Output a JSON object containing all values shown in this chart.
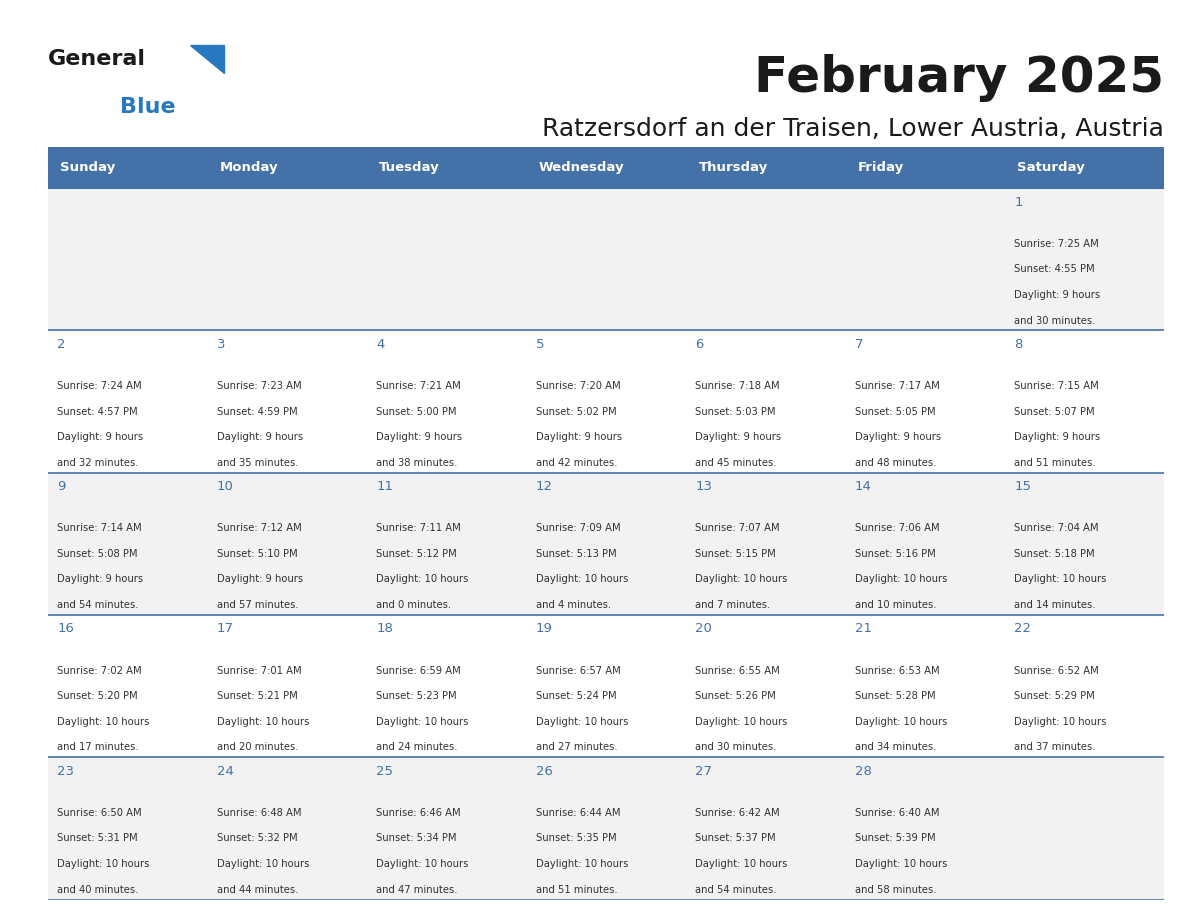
{
  "title": "February 2025",
  "subtitle": "Ratzersdorf an der Traisen, Lower Austria, Austria",
  "title_fontsize": 36,
  "subtitle_fontsize": 18,
  "header_bg": "#4472a8",
  "header_text_color": "#ffffff",
  "cell_bg_odd": "#f2f2f2",
  "cell_bg_even": "#ffffff",
  "border_color": "#4472a8",
  "day_number_color": "#4472a8",
  "text_color": "#333333",
  "days_of_week": [
    "Sunday",
    "Monday",
    "Tuesday",
    "Wednesday",
    "Thursday",
    "Friday",
    "Saturday"
  ],
  "weeks": [
    [
      null,
      null,
      null,
      null,
      null,
      null,
      1
    ],
    [
      2,
      3,
      4,
      5,
      6,
      7,
      8
    ],
    [
      9,
      10,
      11,
      12,
      13,
      14,
      15
    ],
    [
      16,
      17,
      18,
      19,
      20,
      21,
      22
    ],
    [
      23,
      24,
      25,
      26,
      27,
      28,
      null
    ]
  ],
  "cell_data": {
    "1": {
      "sunrise": "7:25 AM",
      "sunset": "4:55 PM",
      "daylight": "9 hours and 30 minutes."
    },
    "2": {
      "sunrise": "7:24 AM",
      "sunset": "4:57 PM",
      "daylight": "9 hours and 32 minutes."
    },
    "3": {
      "sunrise": "7:23 AM",
      "sunset": "4:59 PM",
      "daylight": "9 hours and 35 minutes."
    },
    "4": {
      "sunrise": "7:21 AM",
      "sunset": "5:00 PM",
      "daylight": "9 hours and 38 minutes."
    },
    "5": {
      "sunrise": "7:20 AM",
      "sunset": "5:02 PM",
      "daylight": "9 hours and 42 minutes."
    },
    "6": {
      "sunrise": "7:18 AM",
      "sunset": "5:03 PM",
      "daylight": "9 hours and 45 minutes."
    },
    "7": {
      "sunrise": "7:17 AM",
      "sunset": "5:05 PM",
      "daylight": "9 hours and 48 minutes."
    },
    "8": {
      "sunrise": "7:15 AM",
      "sunset": "5:07 PM",
      "daylight": "9 hours and 51 minutes."
    },
    "9": {
      "sunrise": "7:14 AM",
      "sunset": "5:08 PM",
      "daylight": "9 hours and 54 minutes."
    },
    "10": {
      "sunrise": "7:12 AM",
      "sunset": "5:10 PM",
      "daylight": "9 hours and 57 minutes."
    },
    "11": {
      "sunrise": "7:11 AM",
      "sunset": "5:12 PM",
      "daylight": "10 hours and 0 minutes."
    },
    "12": {
      "sunrise": "7:09 AM",
      "sunset": "5:13 PM",
      "daylight": "10 hours and 4 minutes."
    },
    "13": {
      "sunrise": "7:07 AM",
      "sunset": "5:15 PM",
      "daylight": "10 hours and 7 minutes."
    },
    "14": {
      "sunrise": "7:06 AM",
      "sunset": "5:16 PM",
      "daylight": "10 hours and 10 minutes."
    },
    "15": {
      "sunrise": "7:04 AM",
      "sunset": "5:18 PM",
      "daylight": "10 hours and 14 minutes."
    },
    "16": {
      "sunrise": "7:02 AM",
      "sunset": "5:20 PM",
      "daylight": "10 hours and 17 minutes."
    },
    "17": {
      "sunrise": "7:01 AM",
      "sunset": "5:21 PM",
      "daylight": "10 hours and 20 minutes."
    },
    "18": {
      "sunrise": "6:59 AM",
      "sunset": "5:23 PM",
      "daylight": "10 hours and 24 minutes."
    },
    "19": {
      "sunrise": "6:57 AM",
      "sunset": "5:24 PM",
      "daylight": "10 hours and 27 minutes."
    },
    "20": {
      "sunrise": "6:55 AM",
      "sunset": "5:26 PM",
      "daylight": "10 hours and 30 minutes."
    },
    "21": {
      "sunrise": "6:53 AM",
      "sunset": "5:28 PM",
      "daylight": "10 hours and 34 minutes."
    },
    "22": {
      "sunrise": "6:52 AM",
      "sunset": "5:29 PM",
      "daylight": "10 hours and 37 minutes."
    },
    "23": {
      "sunrise": "6:50 AM",
      "sunset": "5:31 PM",
      "daylight": "10 hours and 40 minutes."
    },
    "24": {
      "sunrise": "6:48 AM",
      "sunset": "5:32 PM",
      "daylight": "10 hours and 44 minutes."
    },
    "25": {
      "sunrise": "6:46 AM",
      "sunset": "5:34 PM",
      "daylight": "10 hours and 47 minutes."
    },
    "26": {
      "sunrise": "6:44 AM",
      "sunset": "5:35 PM",
      "daylight": "10 hours and 51 minutes."
    },
    "27": {
      "sunrise": "6:42 AM",
      "sunset": "5:37 PM",
      "daylight": "10 hours and 54 minutes."
    },
    "28": {
      "sunrise": "6:40 AM",
      "sunset": "5:39 PM",
      "daylight": "10 hours and 58 minutes."
    }
  },
  "logo_text_general": "General",
  "logo_text_blue": "Blue",
  "logo_color_general": "#1a1a1a",
  "logo_color_blue": "#2878c0",
  "logo_triangle_color": "#2878c0"
}
